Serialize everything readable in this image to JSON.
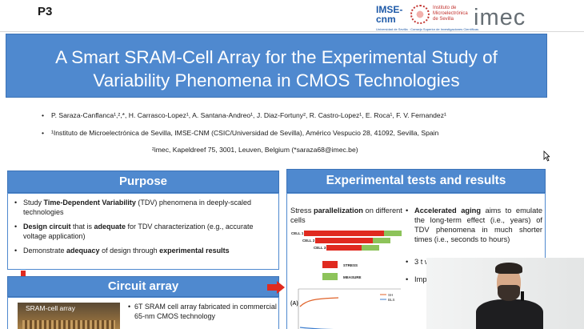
{
  "slide": {
    "id": "P3"
  },
  "logos": {
    "imse_mark_line1": "IMSE-",
    "imse_mark_line2": "cnm",
    "imse_text": "Instituto de Microelectrónica de Sevilla",
    "imse_sub": "Universidad de Sevilla · Consejo Superior de Investigaciones Científicas",
    "imec": "imec"
  },
  "title": {
    "line1": "A Smart SRAM-Cell Array for the Experimental Study of",
    "line2": "Variability Phenomena in CMOS Technologies"
  },
  "authors": "P. Saraza-Canflanca¹,²,*, H. Carrasco-Lopez¹, A. Santana-Andreo¹, J. Diaz-Fortuny², R. Castro-Lopez¹, E. Roca¹, F. V. Fernandez¹",
  "affiliation1": "¹Instituto de Microelectrónica de Sevilla, IMSE-CNM (CSIC/Universidad de Sevilla), Américo Vespucio 28, 41092, Sevilla, Spain",
  "affiliation2": "²imec, Kapeldreef 75, 3001, Leuven, Belgium  (*saraza68@imec.be)",
  "purpose": {
    "heading": "Purpose",
    "items": [
      {
        "pre": "Study ",
        "bold": "Time-Dependent Variability",
        "post": " (TDV) phenomena in deeply-scaled technologies"
      },
      {
        "pre": "",
        "bold": "Design circuit",
        "mid": " that is ",
        "bold2": "adequate",
        "post": " for TDV characterization (e.g., accurate voltage application)"
      },
      {
        "pre": "Demonstrate ",
        "bold": "adequacy",
        "mid": " of design through ",
        "bold2": "experimental results",
        "post": ""
      }
    ]
  },
  "circuit": {
    "heading": "Circuit array",
    "photo_label": "SRAM-cell array",
    "text": "6T SRAM cell array fabricated in commercial 65-nm CMOS technology"
  },
  "experiments": {
    "heading": "Experimental tests and results",
    "stress_pre": "Stress ",
    "stress_bold": "parallelization",
    "stress_post": " on different cells",
    "cells": [
      "CELL 1",
      "CELL 2",
      "CELL 3"
    ],
    "legend": [
      "STRESS",
      "MEASURE"
    ],
    "colors": {
      "stress": "#e02a1f",
      "measure": "#8dc35a"
    },
    "bullets": [
      {
        "bold": "Accelerated aging",
        "text": " aims to emulate the long-term effect (i.e., years) of TDV phenomena in much shorter times (i.e., seconds to hours)"
      },
      {
        "bold": "",
        "text": "3 t writ"
      },
      {
        "bold": "",
        "text": "Imp met"
      }
    ],
    "plot_y_label": "(A)",
    "plot_legend": [
      "SH",
      "BLS"
    ]
  }
}
